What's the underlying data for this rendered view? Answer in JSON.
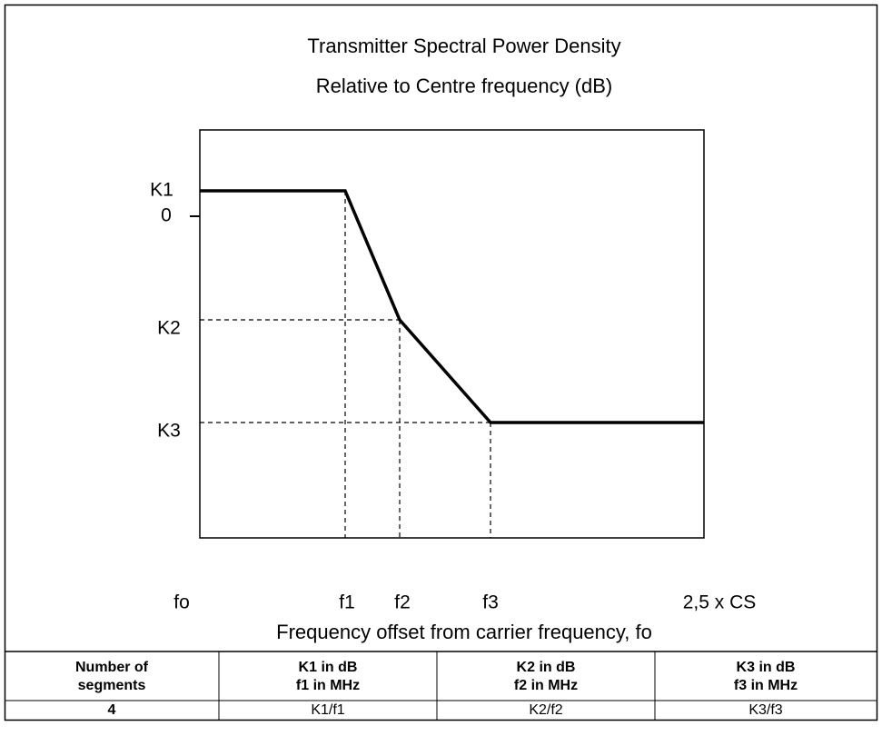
{
  "figure": {
    "title": [
      "Transmitter Spectral Power Density",
      "Relative to Centre frequency (dB)"
    ],
    "y_labels": [
      "K1",
      "0",
      "K2",
      "K3"
    ],
    "x_labels": [
      "fo",
      "f1",
      "f2",
      "f3",
      "2,5 x CS"
    ],
    "x_axis_label": "Frequency offset from carrier frequency, fo"
  },
  "table": {
    "header": [
      [
        "Number of",
        "segments"
      ],
      [
        "K1 in dB",
        "f1 in MHz"
      ],
      [
        "K2 in dB",
        "f2 in MHz"
      ],
      [
        "K3 in dB",
        "f3 in MHz"
      ]
    ],
    "rows": [
      [
        "4",
        "K1/f1",
        "K2/f2",
        "K3/f3"
      ]
    ]
  }
}
